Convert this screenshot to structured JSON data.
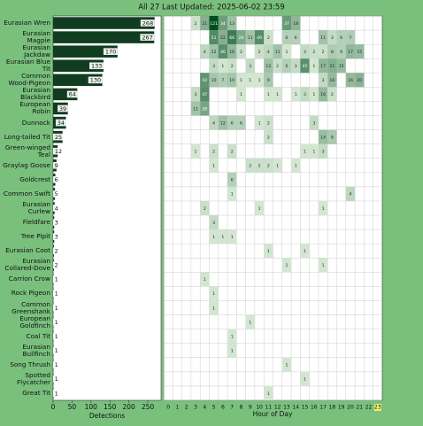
{
  "chart_data": [
    {
      "type": "barh",
      "title": "All 27 Last Updated: 2025-06-02 23:59",
      "categories": [
        "Eurasian Wren",
        "Eurasian Magpie",
        "Eurasian Jackdaw",
        "Eurasian Blue Tit",
        "Common Wood-Pigeon",
        "Eurasian Blackbird",
        "European Robin",
        "Dunnock",
        "Long-tailed Tit",
        "Green-winged Teal",
        "Graylag Goose",
        "Goldcrest",
        "Common Swift",
        "Eurasian Curlew",
        "Fieldfare",
        "Tree Pipit",
        "Eurasian Coot",
        "Eurasian Collared-Dove",
        "Carrion Crow",
        "Rock Pigeon",
        "Common Greenshank",
        "European Goldfinch",
        "Coal Tit",
        "Eurasian Bullfinch",
        "Song Thrush",
        "Spotted Flycatcher",
        "Great Tit"
      ],
      "values": [
        268,
        267,
        170,
        133,
        130,
        64,
        39,
        34,
        25,
        12,
        9,
        6,
        5,
        4,
        3,
        3,
        2,
        2,
        1,
        1,
        1,
        1,
        1,
        1,
        1,
        1,
        1
      ],
      "color": "#103d20",
      "xlabel": "Detections",
      "xlim": [
        0,
        285
      ],
      "xticks": [
        0,
        50,
        100,
        150,
        200,
        250
      ]
    },
    {
      "type": "heatmap",
      "xlabel": "Hour of Day",
      "x": [
        0,
        1,
        2,
        3,
        4,
        5,
        6,
        7,
        8,
        9,
        10,
        11,
        12,
        13,
        14,
        15,
        16,
        17,
        18,
        19,
        20,
        21,
        22,
        23
      ],
      "highlight_x": 23,
      "color": "#00501f",
      "values": [
        [
          null,
          null,
          null,
          2,
          21,
          121,
          34,
          13,
          null,
          null,
          null,
          null,
          null,
          37,
          18,
          null,
          null,
          null,
          null,
          null,
          null,
          null,
          null,
          null
        ],
        [
          null,
          null,
          null,
          null,
          null,
          51,
          22,
          66,
          26,
          11,
          49,
          2,
          null,
          6,
          6,
          null,
          null,
          11,
          3,
          6,
          7,
          null,
          null,
          null
        ],
        [
          null,
          null,
          null,
          null,
          4,
          12,
          46,
          16,
          2,
          null,
          2,
          4,
          11,
          1,
          null,
          3,
          2,
          2,
          8,
          6,
          17,
          15,
          null,
          null
        ],
        [
          null,
          null,
          null,
          null,
          null,
          3,
          1,
          2,
          null,
          3,
          null,
          12,
          2,
          6,
          3,
          45,
          1,
          17,
          21,
          15,
          null,
          null,
          null,
          null
        ],
        [
          null,
          null,
          null,
          null,
          42,
          10,
          7,
          10,
          1,
          1,
          1,
          9,
          null,
          null,
          null,
          null,
          null,
          3,
          16,
          null,
          16,
          20,
          null,
          null
        ],
        [
          null,
          null,
          null,
          3,
          47,
          null,
          null,
          null,
          1,
          null,
          null,
          1,
          1,
          null,
          1,
          3,
          1,
          16,
          2,
          null,
          null,
          null,
          null,
          null
        ],
        [
          null,
          null,
          null,
          11,
          28,
          null,
          null,
          null,
          null,
          null,
          null,
          null,
          null,
          null,
          null,
          null,
          null,
          null,
          null,
          null,
          null,
          null,
          null,
          null
        ],
        [
          null,
          null,
          null,
          null,
          null,
          4,
          12,
          6,
          6,
          null,
          1,
          2,
          null,
          null,
          null,
          null,
          3,
          null,
          null,
          null,
          null,
          null,
          null,
          null
        ],
        [
          null,
          null,
          null,
          null,
          null,
          null,
          null,
          null,
          null,
          null,
          null,
          2,
          null,
          null,
          null,
          null,
          null,
          14,
          9,
          null,
          null,
          null,
          null,
          null
        ],
        [
          null,
          null,
          null,
          1,
          null,
          2,
          null,
          2,
          null,
          null,
          null,
          null,
          null,
          null,
          null,
          1,
          1,
          3,
          null,
          null,
          null,
          null,
          null,
          null
        ],
        [
          null,
          null,
          null,
          null,
          null,
          1,
          null,
          null,
          null,
          2,
          2,
          2,
          1,
          null,
          1,
          null,
          null,
          null,
          null,
          null,
          null,
          null,
          null,
          null
        ],
        [
          null,
          null,
          null,
          null,
          null,
          null,
          null,
          6,
          null,
          null,
          null,
          null,
          null,
          null,
          null,
          null,
          null,
          null,
          null,
          null,
          null,
          null,
          null,
          null
        ],
        [
          null,
          null,
          null,
          null,
          null,
          null,
          null,
          1,
          null,
          null,
          null,
          null,
          null,
          null,
          null,
          null,
          null,
          null,
          null,
          null,
          4,
          null,
          null,
          null
        ],
        [
          null,
          null,
          null,
          null,
          2,
          null,
          null,
          null,
          null,
          null,
          1,
          null,
          null,
          null,
          null,
          null,
          null,
          1,
          null,
          null,
          null,
          null,
          null,
          null
        ],
        [
          null,
          null,
          null,
          null,
          null,
          3,
          null,
          null,
          null,
          null,
          null,
          null,
          null,
          null,
          null,
          null,
          null,
          null,
          null,
          null,
          null,
          null,
          null,
          null
        ],
        [
          null,
          null,
          null,
          null,
          null,
          1,
          1,
          1,
          null,
          null,
          null,
          null,
          null,
          null,
          null,
          null,
          null,
          null,
          null,
          null,
          null,
          null,
          null,
          null
        ],
        [
          null,
          null,
          null,
          null,
          null,
          null,
          null,
          null,
          null,
          null,
          null,
          1,
          null,
          null,
          null,
          1,
          null,
          null,
          null,
          null,
          null,
          null,
          null,
          null
        ],
        [
          null,
          null,
          null,
          null,
          null,
          null,
          null,
          null,
          null,
          null,
          null,
          null,
          null,
          1,
          null,
          null,
          null,
          1,
          null,
          null,
          null,
          null,
          null,
          null
        ],
        [
          null,
          null,
          null,
          null,
          1,
          null,
          null,
          null,
          null,
          null,
          null,
          null,
          null,
          null,
          null,
          null,
          null,
          null,
          null,
          null,
          null,
          null,
          null,
          null
        ],
        [
          null,
          null,
          null,
          null,
          null,
          1,
          null,
          null,
          null,
          null,
          null,
          null,
          null,
          null,
          null,
          null,
          null,
          null,
          null,
          null,
          null,
          null,
          null,
          null
        ],
        [
          null,
          null,
          null,
          null,
          null,
          1,
          null,
          null,
          null,
          null,
          null,
          null,
          null,
          null,
          null,
          null,
          null,
          null,
          null,
          null,
          null,
          null,
          null,
          null
        ],
        [
          null,
          null,
          null,
          null,
          null,
          null,
          null,
          null,
          null,
          1,
          null,
          null,
          null,
          null,
          null,
          null,
          null,
          null,
          null,
          null,
          null,
          null,
          null,
          null
        ],
        [
          null,
          null,
          null,
          null,
          null,
          null,
          null,
          1,
          null,
          null,
          null,
          null,
          null,
          null,
          null,
          null,
          null,
          null,
          null,
          null,
          null,
          null,
          null,
          null
        ],
        [
          null,
          null,
          null,
          null,
          null,
          null,
          null,
          1,
          null,
          null,
          null,
          null,
          null,
          null,
          null,
          null,
          null,
          null,
          null,
          null,
          null,
          null,
          null,
          null
        ],
        [
          null,
          null,
          null,
          null,
          null,
          null,
          null,
          null,
          null,
          null,
          null,
          null,
          null,
          1,
          null,
          null,
          null,
          null,
          null,
          null,
          null,
          null,
          null,
          null
        ],
        [
          null,
          null,
          null,
          null,
          null,
          null,
          null,
          null,
          null,
          null,
          null,
          null,
          null,
          null,
          null,
          1,
          null,
          null,
          null,
          null,
          null,
          null,
          null,
          null
        ],
        [
          null,
          null,
          null,
          null,
          null,
          null,
          null,
          null,
          null,
          null,
          null,
          1,
          null,
          null,
          null,
          null,
          null,
          null,
          null,
          null,
          null,
          null,
          null,
          null
        ]
      ]
    }
  ]
}
